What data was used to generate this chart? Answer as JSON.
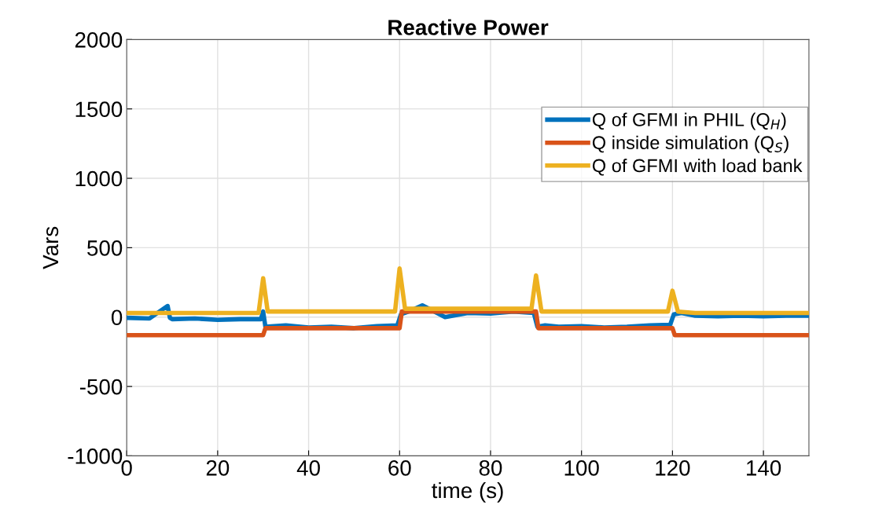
{
  "chart_data": {
    "type": "line",
    "title": "Reactive Power",
    "xlabel": "time (s)",
    "ylabel": "Vars",
    "xlim": [
      0,
      150
    ],
    "xticks": [
      0,
      20,
      40,
      60,
      80,
      100,
      120,
      140
    ],
    "ylim": [
      -1000,
      2000
    ],
    "yticks": [
      -1000,
      -500,
      0,
      500,
      1000,
      1500,
      2000
    ],
    "grid": true,
    "legend": "top right",
    "line_style": "solid",
    "marker": "none",
    "series": [
      {
        "name": "Q of GFMI in PHIL (Q$_{H}$)",
        "color": "#0072bd",
        "x": [
          0,
          5,
          9,
          9.5,
          10,
          15,
          20,
          25,
          29.5,
          30,
          30.5,
          35,
          40,
          45,
          50,
          55,
          59.5,
          60.3,
          62,
          65,
          70,
          75,
          80,
          85,
          89.5,
          90.3,
          92,
          95,
          100,
          105,
          110,
          115,
          119.5,
          120.3,
          122,
          125,
          130,
          135,
          140,
          145,
          150
        ],
        "values": [
          -5,
          -10,
          80,
          -5,
          -15,
          -10,
          -20,
          -15,
          -15,
          40,
          -70,
          -60,
          -75,
          -70,
          -80,
          -65,
          -60,
          20,
          40,
          85,
          0,
          30,
          25,
          40,
          30,
          -70,
          -60,
          -70,
          -65,
          -75,
          -70,
          -60,
          -55,
          20,
          30,
          10,
          5,
          10,
          5,
          10,
          10
        ]
      },
      {
        "name": "Q inside simulation (Q$_{S}$)",
        "color": "#d95319",
        "x": [
          0,
          30,
          30.5,
          60,
          60.5,
          90,
          90.5,
          120,
          120.5,
          150
        ],
        "values": [
          -130,
          -130,
          -80,
          -80,
          40,
          40,
          -80,
          -80,
          -130,
          -130
        ]
      },
      {
        "name": "Q of GFMI with load bank",
        "color": "#edb120",
        "x": [
          0,
          29,
          30,
          31,
          59,
          60,
          61.2,
          89,
          90,
          91.2,
          119,
          120,
          121.2,
          125,
          150
        ],
        "values": [
          30,
          30,
          280,
          40,
          40,
          350,
          60,
          60,
          300,
          40,
          40,
          190,
          40,
          30,
          30
        ]
      }
    ]
  }
}
